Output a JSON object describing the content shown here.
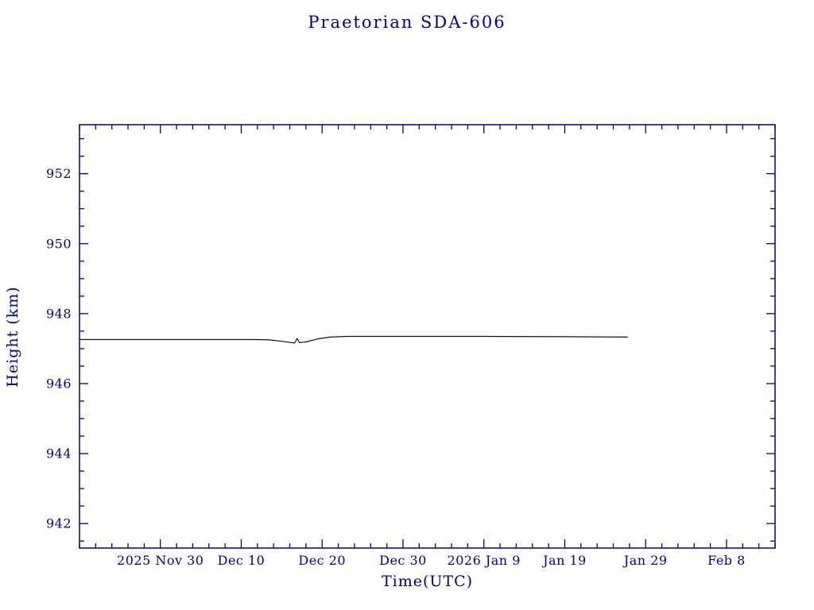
{
  "page": {
    "background": "#ffffff"
  },
  "chart_data": {
    "type": "line",
    "title": "Praetorian SDA-606",
    "xlabel": "Time(UTC)",
    "ylabel": "Height (km)",
    "axis_color": "#00008b",
    "line_color": "#10101c",
    "grid": false,
    "legend": "none",
    "ylim": [
      941.3,
      953.4
    ],
    "y_ticks": [
      942,
      944,
      946,
      948,
      950,
      952
    ],
    "y_minor_step": 0.5,
    "x_range_days": [
      0,
      86
    ],
    "x_minor_step_days": 2,
    "x_ticks": [
      {
        "label": "2025 Nov 30",
        "day": 10
      },
      {
        "label": "Dec 10",
        "day": 20
      },
      {
        "label": "Dec 20",
        "day": 30
      },
      {
        "label": "Dec 30",
        "day": 40
      },
      {
        "label": "2026 Jan 9",
        "day": 50
      },
      {
        "label": "Jan 19",
        "day": 60
      },
      {
        "label": "Jan 29",
        "day": 70
      },
      {
        "label": "Feb 8",
        "day": 80
      }
    ],
    "series": [
      {
        "name": "Height (km)",
        "color": "#10101c",
        "points": [
          [
            0,
            947.26
          ],
          [
            8,
            947.26
          ],
          [
            16,
            947.26
          ],
          [
            22,
            947.26
          ],
          [
            23.5,
            947.25
          ],
          [
            25,
            947.21
          ],
          [
            26.6,
            947.16
          ],
          [
            26.9,
            947.29
          ],
          [
            27.2,
            947.17
          ],
          [
            28,
            947.19
          ],
          [
            29.5,
            947.28
          ],
          [
            31,
            947.33
          ],
          [
            33,
            947.35
          ],
          [
            40,
            947.35
          ],
          [
            50,
            947.35
          ],
          [
            60,
            947.34
          ],
          [
            67.8,
            947.33
          ]
        ]
      }
    ]
  }
}
